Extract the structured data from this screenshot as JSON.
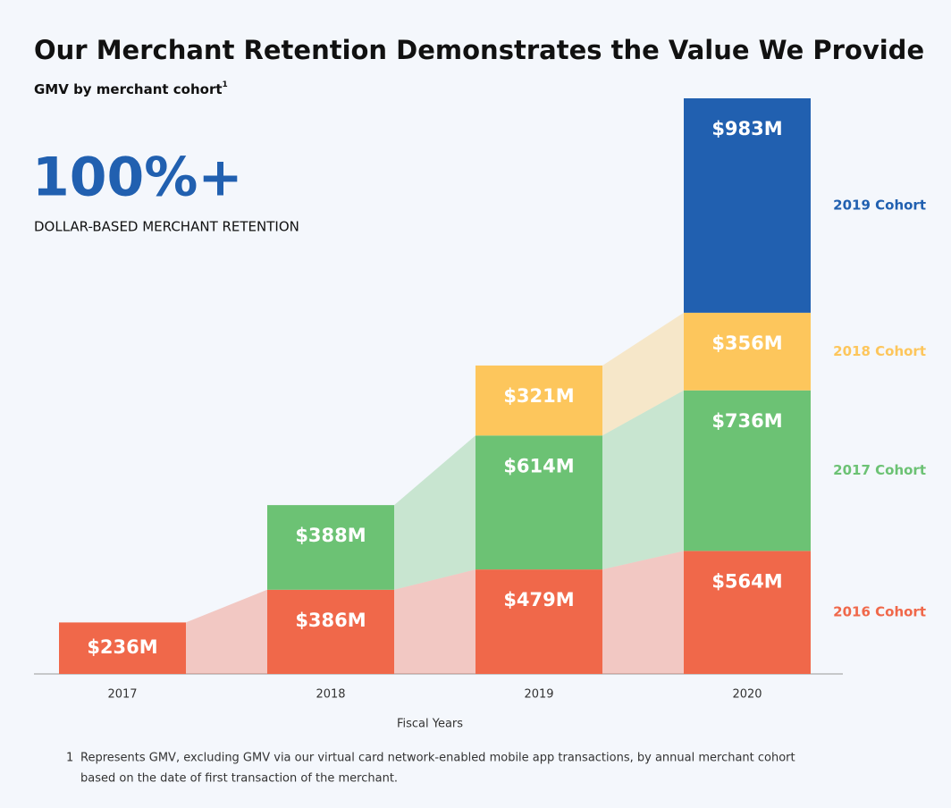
{
  "chart_data": {
    "type": "stacked_bar",
    "title": "Our Merchant Retention Demonstrates the Value We Provide",
    "subtitle": "GMV by merchant cohort",
    "subtitle_note": "1",
    "headline": "100%+",
    "headline_caption": "DOLLAR-BASED MERCHANT RETENTION",
    "x_label": "Fiscal Years",
    "categories": [
      "2017",
      "2018",
      "2019",
      "2020"
    ],
    "series": [
      {
        "name": "2016 Cohort",
        "color": "#f0684a",
        "values": [
          236,
          386,
          479,
          564
        ],
        "value_labels": [
          "$236M",
          "$386M",
          "$479M",
          "$564M"
        ]
      },
      {
        "name": "2017 Cohort",
        "color": "#6cc274",
        "values": [
          null,
          388,
          614,
          736
        ],
        "value_labels": [
          null,
          "$388M",
          "$614M",
          "$736M"
        ]
      },
      {
        "name": "2018 Cohort",
        "color": "#fdc65c",
        "values": [
          null,
          null,
          321,
          356
        ],
        "value_labels": [
          null,
          null,
          "$321M",
          "$356M"
        ]
      },
      {
        "name": "2019 Cohort",
        "color": "#2160b0",
        "values": [
          null,
          null,
          null,
          983
        ],
        "value_labels": [
          null,
          null,
          null,
          "$983M"
        ]
      }
    ],
    "footnote": {
      "marker": "1",
      "lines": [
        "Represents GMV, excluding GMV via our virtual card network-enabled mobile app transactions, by annual merchant cohort",
        "based on the date of first transaction of the merchant."
      ]
    }
  }
}
